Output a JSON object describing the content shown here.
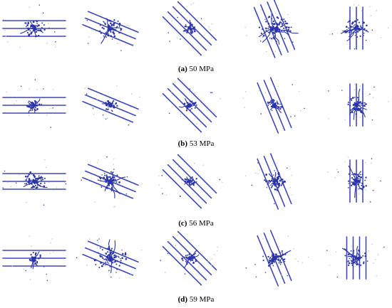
{
  "colors": {
    "particle": "#3a44b8",
    "crack": "#2b34a8",
    "speck": "#c8c8b4"
  },
  "rows": [
    {
      "label": "(a)",
      "value": "50 MPa",
      "panels": [
        {
          "angle_deg": 0,
          "joints": 3,
          "crack_density": "medium"
        },
        {
          "angle_deg": 22.5,
          "joints": 3,
          "crack_density": "medium"
        },
        {
          "angle_deg": 45,
          "joints": 4,
          "crack_density": "low"
        },
        {
          "angle_deg": 67.5,
          "joints": 4,
          "crack_density": "high"
        },
        {
          "angle_deg": 90,
          "joints": 3,
          "crack_density": "medium"
        }
      ]
    },
    {
      "label": "(b)",
      "value": "53 MPa",
      "panels": [
        {
          "angle_deg": 0,
          "joints": 3,
          "crack_density": "low"
        },
        {
          "angle_deg": 22.5,
          "joints": 3,
          "crack_density": "low"
        },
        {
          "angle_deg": 45,
          "joints": 4,
          "crack_density": "low"
        },
        {
          "angle_deg": 67.5,
          "joints": 3,
          "crack_density": "low"
        },
        {
          "angle_deg": 90,
          "joints": 3,
          "crack_density": "medium"
        }
      ]
    },
    {
      "label": "(c)",
      "value": "56 MPa",
      "panels": [
        {
          "angle_deg": 0,
          "joints": 3,
          "crack_density": "medium"
        },
        {
          "angle_deg": 22.5,
          "joints": 3,
          "crack_density": "medium"
        },
        {
          "angle_deg": 45,
          "joints": 4,
          "crack_density": "low"
        },
        {
          "angle_deg": 67.5,
          "joints": 3,
          "crack_density": "medium"
        },
        {
          "angle_deg": 90,
          "joints": 3,
          "crack_density": "medium"
        }
      ]
    },
    {
      "label": "(d)",
      "value": "59 MPa",
      "panels": [
        {
          "angle_deg": 0,
          "joints": 3,
          "crack_density": "low"
        },
        {
          "angle_deg": 22.5,
          "joints": 3,
          "crack_density": "high"
        },
        {
          "angle_deg": 45,
          "joints": 4,
          "crack_density": "low"
        },
        {
          "angle_deg": 67.5,
          "joints": 3,
          "crack_density": "medium"
        },
        {
          "angle_deg": 90,
          "joints": 4,
          "crack_density": "medium"
        }
      ]
    }
  ]
}
